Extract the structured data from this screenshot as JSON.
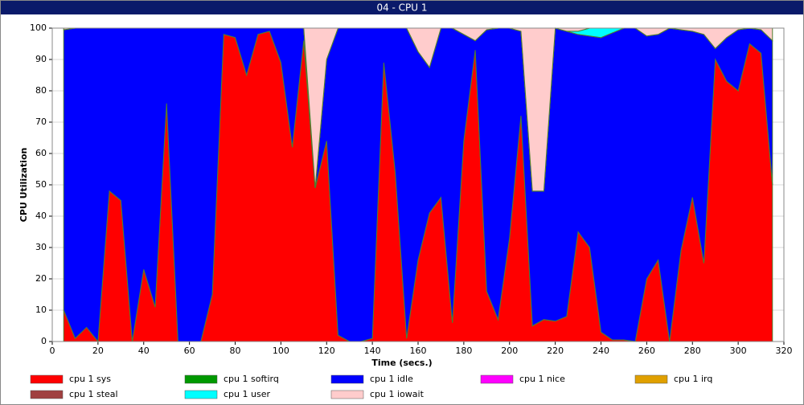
{
  "chart_data": {
    "type": "stacked-area",
    "title": "04 - CPU 1",
    "x_label": "Time (secs.)",
    "y_label": "CPU Utilization",
    "x": [
      5,
      10,
      15,
      20,
      25,
      30,
      35,
      40,
      45,
      50,
      55,
      60,
      65,
      70,
      75,
      80,
      85,
      90,
      95,
      100,
      105,
      110,
      115,
      120,
      125,
      130,
      135,
      140,
      145,
      150,
      155,
      160,
      165,
      170,
      175,
      180,
      185,
      190,
      195,
      200,
      205,
      210,
      215,
      220,
      225,
      230,
      235,
      240,
      245,
      250,
      255,
      260,
      265,
      270,
      275,
      280,
      285,
      290,
      295,
      300,
      305,
      310,
      315
    ],
    "series": [
      {
        "name": "cpu 1 sys",
        "color": "#ff0000",
        "values": [
          10,
          1,
          4.5,
          0,
          48,
          45,
          0,
          23,
          11,
          76,
          0,
          0,
          0,
          15,
          98,
          97,
          85,
          98,
          99,
          89,
          62,
          96,
          49,
          64,
          2,
          0,
          0,
          1,
          89,
          54,
          1,
          26,
          41,
          46,
          6,
          64,
          93,
          16,
          7,
          33,
          72,
          5,
          7,
          6.5,
          8,
          35,
          30,
          3,
          0.5,
          0.5,
          0,
          20,
          26,
          0,
          29,
          46,
          25,
          90,
          83,
          80,
          95,
          92,
          50
        ]
      },
      {
        "name": "cpu 1 softirq",
        "color": "#009900",
        "values": [
          0,
          0,
          0,
          0,
          0,
          0,
          0,
          0,
          0,
          0,
          0,
          0,
          0,
          0,
          0,
          0,
          0,
          0,
          0,
          0,
          0,
          0,
          0,
          0,
          0,
          0,
          0,
          0,
          0,
          0,
          0,
          0,
          0,
          0,
          0,
          0,
          0,
          0,
          0,
          0,
          0,
          0,
          0,
          0,
          0,
          0,
          0,
          0,
          0,
          0,
          0,
          0,
          0,
          0,
          0,
          0,
          0,
          0,
          0,
          0,
          0,
          0,
          0
        ]
      },
      {
        "name": "cpu 1 idle",
        "color": "#0000ff",
        "values": [
          89.5,
          99,
          95.5,
          100,
          52,
          55,
          100,
          77,
          89,
          24,
          100,
          100,
          100,
          85,
          2,
          3,
          15,
          2,
          1,
          11,
          38,
          4,
          0,
          26,
          98,
          100,
          100,
          99,
          11,
          46,
          99,
          66.5,
          46.5,
          54,
          94,
          34,
          3,
          83.5,
          93,
          67,
          27,
          43,
          41,
          93.5,
          91,
          63,
          67.5,
          94,
          98,
          99.5,
          100,
          77.5,
          72,
          100,
          70.5,
          53,
          73,
          3.5,
          14,
          19.5,
          5,
          7.5,
          46
        ]
      },
      {
        "name": "cpu 1 nice",
        "color": "#ff00ff",
        "values": [
          0,
          0,
          0,
          0,
          0,
          0,
          0,
          0,
          0,
          0,
          0,
          0,
          0,
          0,
          0,
          0,
          0,
          0,
          0,
          0,
          0,
          0,
          0,
          0,
          0,
          0,
          0,
          0,
          0,
          0,
          0,
          0,
          0,
          0,
          0,
          0,
          0,
          0,
          0,
          0,
          0,
          0,
          0,
          0,
          0,
          0,
          0,
          0,
          0,
          0,
          0,
          0,
          0,
          0,
          0,
          0,
          0,
          0,
          0,
          0,
          0,
          0,
          0
        ]
      },
      {
        "name": "cpu 1 irq",
        "color": "#e0a000",
        "values": [
          0,
          0,
          0,
          0,
          0,
          0,
          0,
          0,
          0,
          0,
          0,
          0,
          0,
          0,
          0,
          0,
          0,
          0,
          0,
          0,
          0,
          0,
          0,
          0,
          0,
          0,
          0,
          0,
          0,
          0,
          0,
          0,
          0,
          0,
          0,
          0,
          0,
          0,
          0,
          0,
          0,
          0,
          0,
          0,
          0,
          0,
          0,
          0,
          0,
          0,
          0,
          0,
          0,
          0,
          0,
          0,
          0,
          0,
          0,
          0,
          0,
          0,
          0
        ]
      },
      {
        "name": "cpu 1 steal",
        "color": "#a04040",
        "values": [
          0,
          0,
          0,
          0,
          0,
          0,
          0,
          0,
          0,
          0,
          0,
          0,
          0,
          0,
          0,
          0,
          0,
          0,
          0,
          0,
          0,
          0,
          0,
          0,
          0,
          0,
          0,
          0,
          0,
          0,
          0,
          0,
          0,
          0,
          0,
          0,
          0,
          0,
          0,
          0,
          0,
          0,
          0,
          0,
          0,
          0,
          0,
          0,
          0,
          0,
          0,
          0,
          0,
          0,
          0,
          0,
          0,
          0,
          0,
          0,
          0,
          0,
          0
        ]
      },
      {
        "name": "cpu 1 user",
        "color": "#00ffff",
        "values": [
          0,
          0,
          0,
          0,
          0,
          0,
          0,
          0,
          0,
          0,
          0,
          0,
          0,
          0,
          0,
          0,
          0,
          0,
          0,
          0,
          0,
          0,
          0,
          0,
          0,
          0,
          0,
          0,
          0,
          0,
          0,
          0,
          0,
          0,
          0,
          0,
          0,
          0,
          0,
          0,
          0,
          0,
          0,
          0,
          0,
          1,
          2.5,
          3,
          1.5,
          0,
          0,
          0,
          0,
          0,
          0,
          0,
          0,
          0,
          0,
          0,
          0,
          0,
          0
        ]
      },
      {
        "name": "cpu 1 iowait",
        "color": "#ffcccc",
        "values": [
          0.5,
          0,
          0,
          0,
          0,
          0,
          0,
          0,
          0,
          0,
          0,
          0,
          0,
          0,
          0,
          0,
          0,
          0,
          0,
          0,
          0,
          0,
          51,
          10,
          0,
          0,
          0,
          0,
          0,
          0,
          0,
          7.5,
          12.5,
          0,
          0,
          2,
          4,
          0.5,
          0,
          0,
          1,
          52,
          52,
          0,
          1,
          1,
          0,
          0,
          0,
          0,
          0,
          2.5,
          2,
          0,
          0.5,
          1,
          2,
          6.5,
          3,
          0.5,
          0,
          0.5,
          4
        ]
      }
    ],
    "xlim": [
      0,
      320
    ],
    "xticks": [
      0,
      20,
      40,
      60,
      80,
      100,
      120,
      140,
      160,
      180,
      200,
      220,
      240,
      260,
      280,
      300,
      320
    ],
    "ylim": [
      0,
      100
    ],
    "yticks": [
      0,
      10,
      20,
      30,
      40,
      50,
      60,
      70,
      80,
      90,
      100
    ],
    "grid": true
  }
}
